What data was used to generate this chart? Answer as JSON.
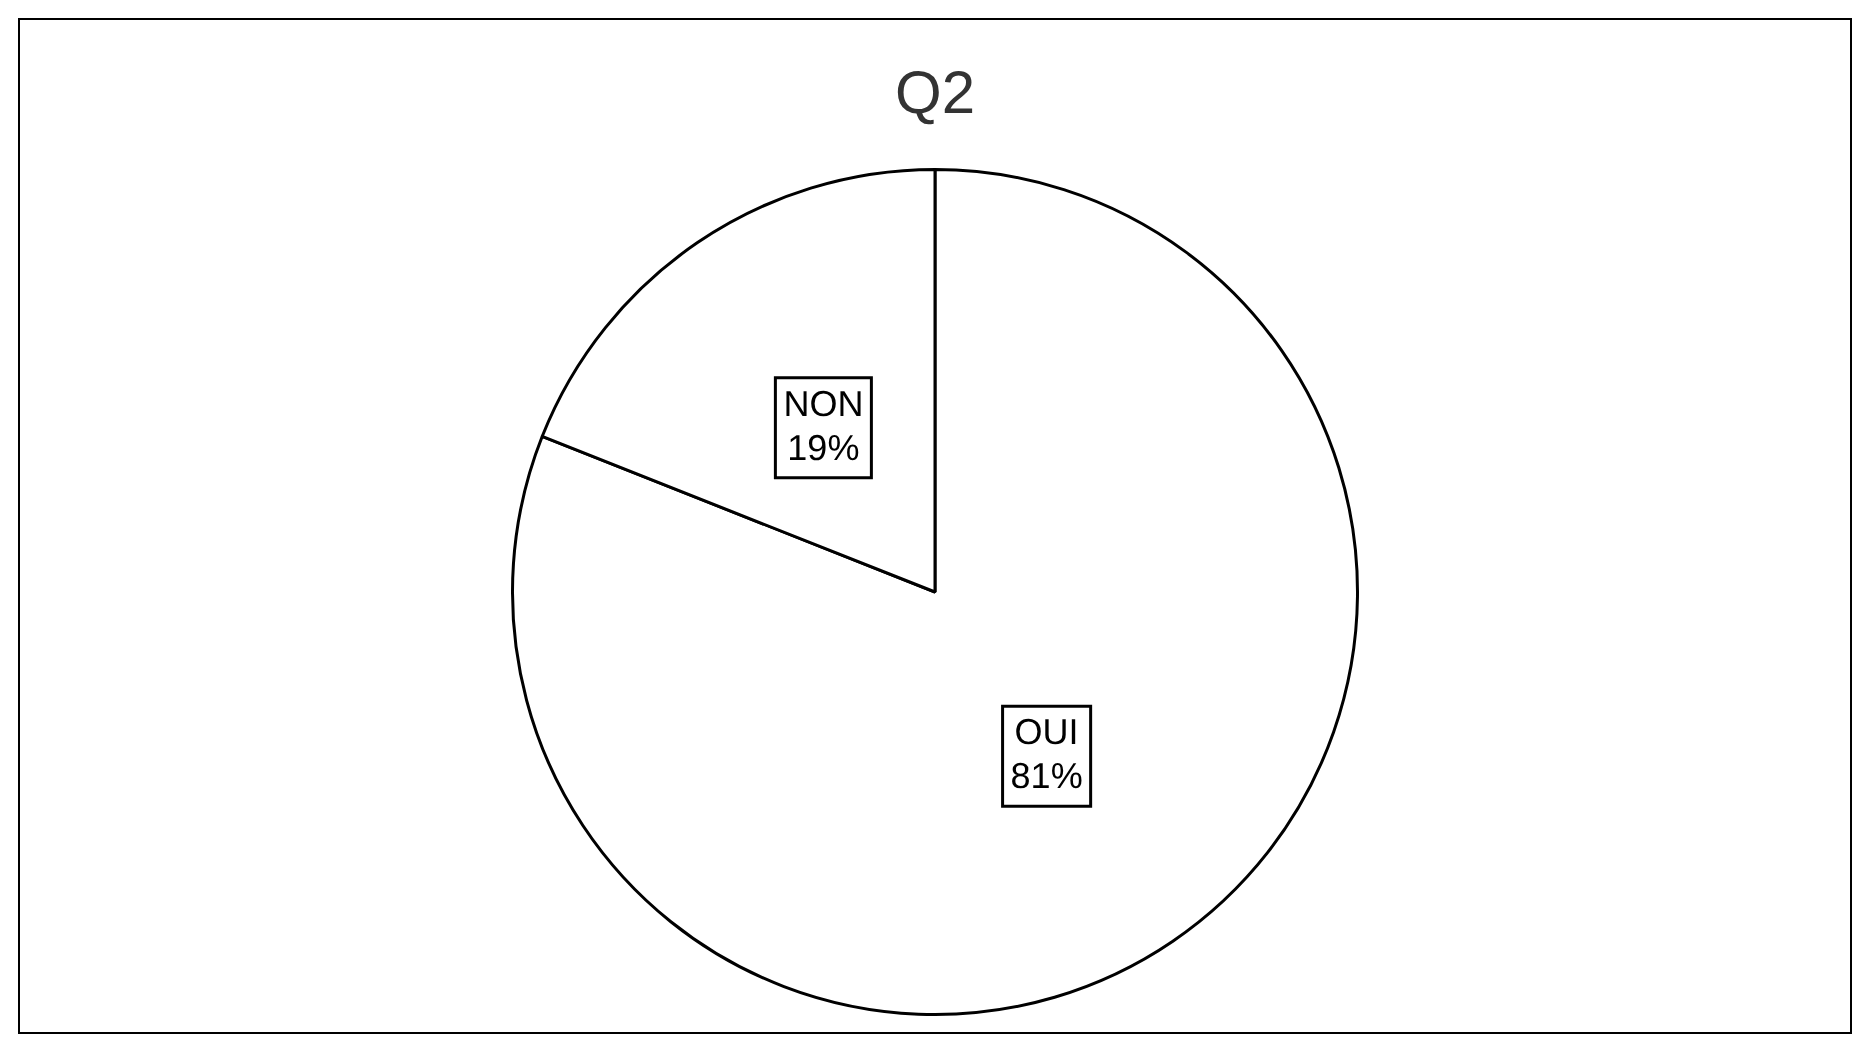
{
  "chart_data": {
    "type": "pie",
    "title": "Q2",
    "categories": [
      "OUI",
      "NON"
    ],
    "values": [
      81,
      19
    ],
    "colors": [
      "#ffffff",
      "#ffffff"
    ],
    "value_labels": [
      "81%",
      "19%"
    ],
    "legend": false
  }
}
